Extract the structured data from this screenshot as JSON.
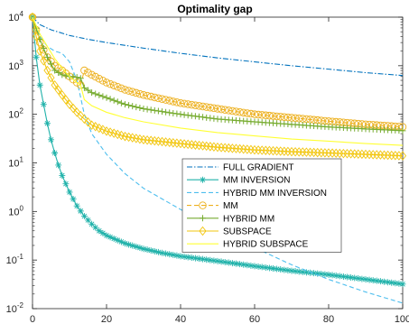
{
  "chart_data": {
    "type": "line",
    "title": "Optimality gap",
    "xlabel": "",
    "ylabel": "",
    "x_scale": "linear",
    "y_scale": "log",
    "xlim": [
      0,
      100
    ],
    "ylim": [
      0.01,
      10000
    ],
    "x_ticks": [
      0,
      20,
      40,
      60,
      80,
      100
    ],
    "x_tick_labels": [
      "0",
      "20",
      "40",
      "60",
      "80",
      "100"
    ],
    "y_ticks": [
      0.01,
      0.1,
      1,
      10,
      100,
      1000,
      10000
    ],
    "y_tick_labels": [
      {
        "base": "10",
        "exp": "-2"
      },
      {
        "base": "10",
        "exp": "-1"
      },
      {
        "base": "10",
        "exp": "0"
      },
      {
        "base": "10",
        "exp": "1"
      },
      {
        "base": "10",
        "exp": "2"
      },
      {
        "base": "10",
        "exp": "3"
      },
      {
        "base": "10",
        "exp": "4"
      }
    ],
    "grid": false,
    "legend_position": "center-right",
    "series": [
      {
        "name": "FULL GRADIENT",
        "color": "#0072BD",
        "dash": "dashdot",
        "marker": "none",
        "x": [
          0,
          2,
          5,
          10,
          15,
          20,
          30,
          40,
          50,
          60,
          70,
          80,
          90,
          100
        ],
        "y": [
          10000,
          7000,
          5500,
          4200,
          3500,
          3000,
          2300,
          1800,
          1450,
          1200,
          1000,
          850,
          720,
          630
        ]
      },
      {
        "name": "MM INVERSION",
        "color": "#20B2AA",
        "dash": "solid",
        "marker": "asterisk",
        "x": [
          0,
          1,
          2,
          3,
          4,
          5,
          6,
          7,
          8,
          10,
          12,
          14,
          16,
          18,
          20,
          25,
          30,
          35,
          40,
          50,
          60,
          70,
          80,
          90,
          100
        ],
        "y": [
          10000,
          1500,
          400,
          160,
          65,
          30,
          16,
          9,
          5.5,
          2.5,
          1.3,
          0.8,
          0.55,
          0.4,
          0.32,
          0.22,
          0.17,
          0.14,
          0.12,
          0.095,
          0.075,
          0.06,
          0.05,
          0.04,
          0.032
        ]
      },
      {
        "name": "HYBRID MM INVERSION",
        "color": "#4DBEEE",
        "dash": "dashed",
        "marker": "none",
        "x": [
          0,
          2,
          4,
          6,
          8,
          10,
          12,
          14,
          16,
          20,
          25,
          30,
          40,
          50,
          60,
          70,
          80,
          90,
          100
        ],
        "y": [
          10000,
          4000,
          2500,
          2000,
          1800,
          1200,
          500,
          100,
          40,
          15,
          6,
          3,
          1.1,
          0.45,
          0.18,
          0.08,
          0.04,
          0.022,
          0.013
        ]
      },
      {
        "name": "MM",
        "color": "#EDB120",
        "dash": "dashed",
        "marker": "circle",
        "x": [
          0,
          2,
          4,
          6,
          8,
          10,
          12,
          13,
          14,
          16,
          20,
          25,
          30,
          40,
          50,
          60,
          70,
          80,
          90,
          100
        ],
        "y": [
          10000,
          3000,
          1500,
          1000,
          800,
          600,
          450,
          400,
          800,
          650,
          450,
          320,
          250,
          170,
          130,
          100,
          85,
          72,
          62,
          55
        ]
      },
      {
        "name": "HYBRID MM",
        "color": "#77AC30",
        "dash": "solid",
        "marker": "plus",
        "x": [
          0,
          2,
          4,
          6,
          8,
          10,
          12,
          13,
          14,
          16,
          20,
          25,
          30,
          40,
          50,
          60,
          70,
          80,
          90,
          100
        ],
        "y": [
          10000,
          3500,
          1500,
          800,
          650,
          600,
          580,
          550,
          350,
          280,
          220,
          160,
          130,
          100,
          80,
          70,
          62,
          55,
          50,
          46
        ]
      },
      {
        "name": "SUBSPACE",
        "color": "#F2C60F",
        "dash": "solid",
        "marker": "diamond",
        "x": [
          0,
          1,
          2,
          4,
          6,
          8,
          10,
          12,
          14,
          16,
          20,
          25,
          30,
          40,
          50,
          60,
          70,
          80,
          90,
          100
        ],
        "y": [
          10000,
          4000,
          2000,
          800,
          400,
          250,
          160,
          110,
          80,
          60,
          45,
          35,
          30,
          25,
          21,
          18.5,
          17,
          16,
          15,
          14
        ]
      },
      {
        "name": "HYBRID SUBSPACE",
        "color": "#FFFF33",
        "dash": "solid",
        "marker": "none",
        "x": [
          0,
          2,
          4,
          6,
          8,
          10,
          12,
          13,
          14,
          16,
          20,
          25,
          30,
          40,
          50,
          60,
          70,
          80,
          90,
          100
        ],
        "y": [
          10000,
          4500,
          2500,
          1400,
          900,
          600,
          450,
          400,
          200,
          150,
          110,
          85,
          70,
          52,
          42,
          36,
          31,
          28,
          25,
          23
        ]
      }
    ]
  }
}
